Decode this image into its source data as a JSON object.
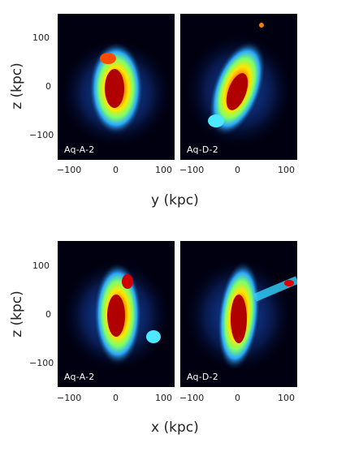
{
  "figure": {
    "rows": [
      {
        "xlabel": "y (kpc)",
        "ylabel": "z (kpc)",
        "panels": [
          {
            "label": "Aq-A-2"
          },
          {
            "label": "Aq-D-2"
          }
        ]
      },
      {
        "xlabel": "x (kpc)",
        "ylabel": "z (kpc)",
        "panels": [
          {
            "label": "Aq-A-2"
          },
          {
            "label": "Aq-D-2"
          }
        ]
      }
    ],
    "x_ticks": [
      "−100",
      "0",
      "100"
    ],
    "y_ticks": [
      "100",
      "0",
      "−100"
    ],
    "colormap": [
      "#00001a",
      "#0a2a8a",
      "#1e78ff",
      "#35d6ff",
      "#8cff6a",
      "#ffe600",
      "#ff7a00",
      "#e00000",
      "#a00000"
    ]
  }
}
